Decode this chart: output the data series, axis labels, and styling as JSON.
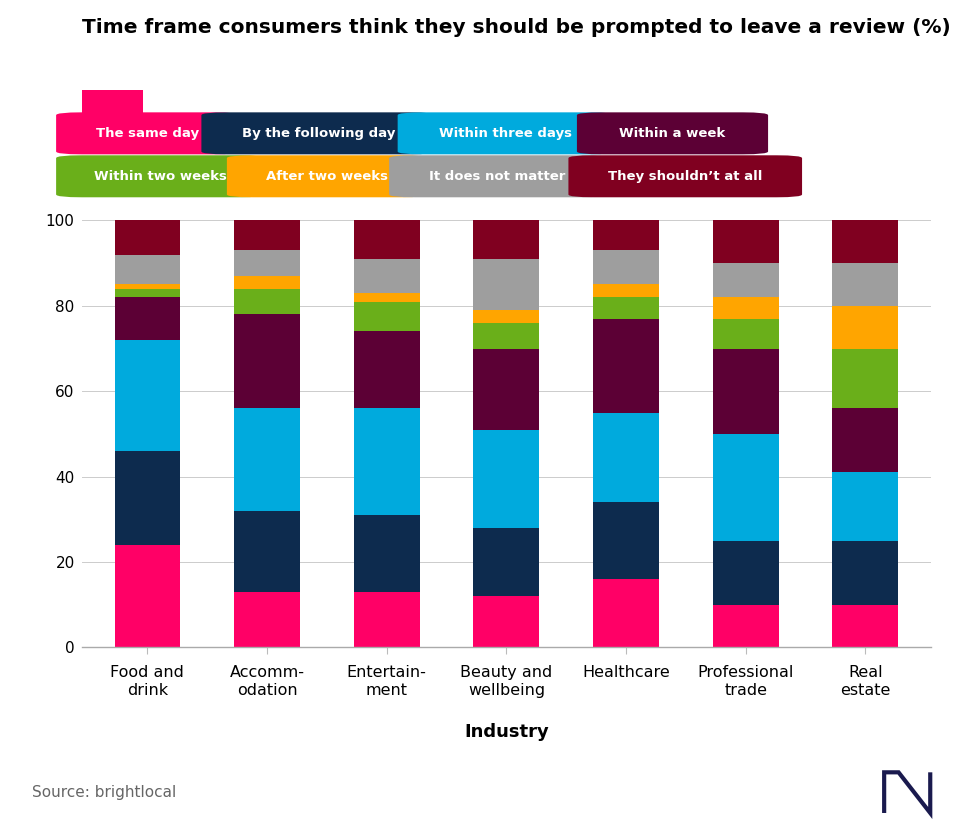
{
  "title": "Time frame consumers think they should be prompted to leave a review (%)",
  "xlabel": "Industry",
  "categories": [
    "Food and\ndrink",
    "Accomm-\nodation",
    "Entertain-\nment",
    "Beauty and\nwellbeing",
    "Healthcare",
    "Professional\ntrade",
    "Real\nestate"
  ],
  "series_order": [
    "The same day",
    "By the following day",
    "Within three days",
    "Within a week",
    "Within two weeks",
    "After two weeks",
    "It does not matter",
    "They shouldn’t at all"
  ],
  "series": {
    "The same day": [
      24,
      13,
      13,
      12,
      16,
      10,
      10
    ],
    "By the following day": [
      22,
      19,
      18,
      16,
      18,
      15,
      15
    ],
    "Within three days": [
      26,
      24,
      25,
      23,
      21,
      25,
      16
    ],
    "Within a week": [
      10,
      22,
      18,
      19,
      22,
      20,
      15
    ],
    "Within two weeks": [
      2,
      6,
      7,
      6,
      5,
      7,
      14
    ],
    "After two weeks": [
      1,
      3,
      2,
      3,
      3,
      5,
      10
    ],
    "It does not matter": [
      7,
      6,
      8,
      12,
      8,
      8,
      10
    ],
    "They shouldn’t at all": [
      8,
      7,
      9,
      9,
      7,
      10,
      10
    ]
  },
  "colors": {
    "The same day": "#FF0066",
    "By the following day": "#0D2B4E",
    "Within three days": "#00AADD",
    "Within a week": "#5C0035",
    "Within two weeks": "#6AAF1A",
    "After two weeks": "#FFA500",
    "It does not matter": "#9E9E9E",
    "They shouldn’t at all": "#800020"
  },
  "title_accent_color": "#FF0066",
  "source_text": "Source: brightlocal",
  "footer_bg": "#ECEDF4",
  "chart_bg": "#FFFFFF",
  "legend_row1": [
    "The same day",
    "By the following day",
    "Within three days",
    "Within a week"
  ],
  "legend_row2": [
    "Within two weeks",
    "After two weeks",
    "It does not matter",
    "They shouldn’t at all"
  ]
}
